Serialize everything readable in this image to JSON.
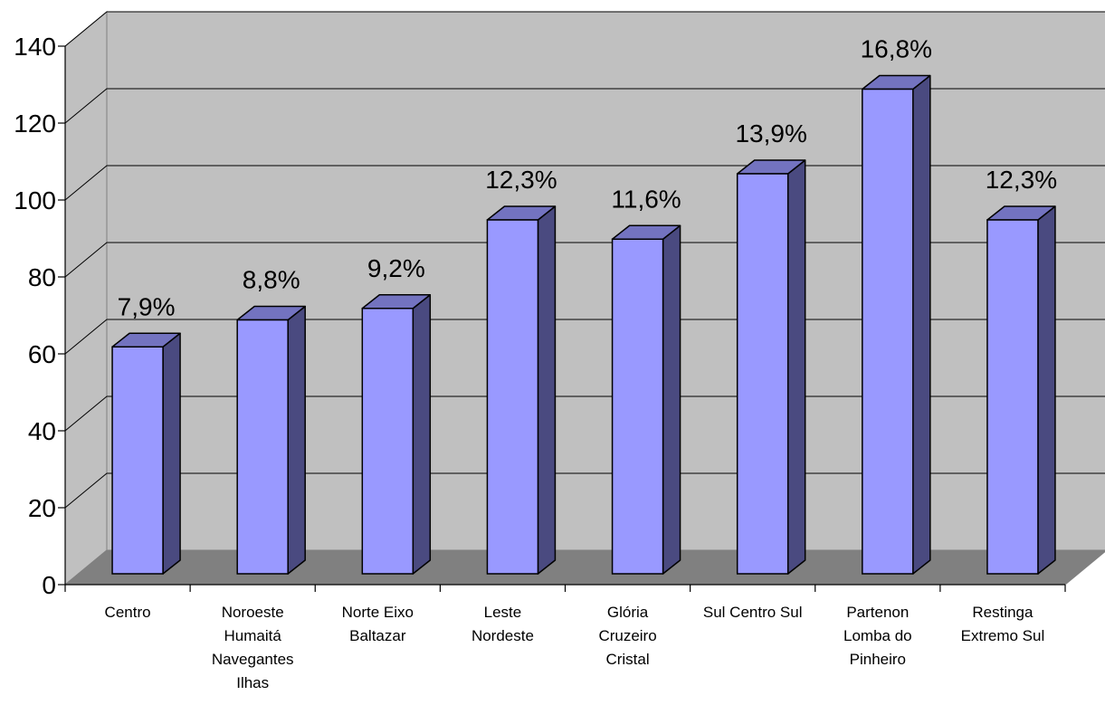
{
  "chart_data": {
    "type": "bar",
    "style": "3d-column",
    "title": "",
    "xlabel": "",
    "ylabel": "",
    "ylim": [
      0,
      140
    ],
    "yticks": [
      0,
      20,
      40,
      60,
      80,
      100,
      120,
      140
    ],
    "grid": true,
    "legend": "none",
    "categories": [
      [
        "Centro"
      ],
      [
        "Noroeste",
        "Humaitá",
        "Navegantes",
        "Ilhas"
      ],
      [
        "Norte Eixo",
        "Baltazar"
      ],
      [
        "Leste",
        "Nordeste"
      ],
      [
        "Glória",
        "Cruzeiro",
        "Cristal"
      ],
      [
        "Sul Centro Sul"
      ],
      [
        "Partenon",
        "Lomba do",
        "Pinheiro"
      ],
      [
        "Restinga",
        "Extremo Sul"
      ]
    ],
    "values": [
      59,
      66,
      69,
      92,
      87,
      104,
      126,
      92
    ],
    "data_labels": [
      "7,9%",
      "8,8%",
      "9,2%",
      "12,3%",
      "11,6%",
      "13,9%",
      "16,8%",
      "12,3%"
    ],
    "colors": {
      "bar_front": "#9999ff",
      "bar_side": "#4a4a80",
      "bar_top": "#7373c0",
      "back_wall": "#c0c0c0",
      "side_wall": "#c0c0c0",
      "floor": "#808080",
      "grid": "#000000",
      "outline": "#000000"
    }
  }
}
